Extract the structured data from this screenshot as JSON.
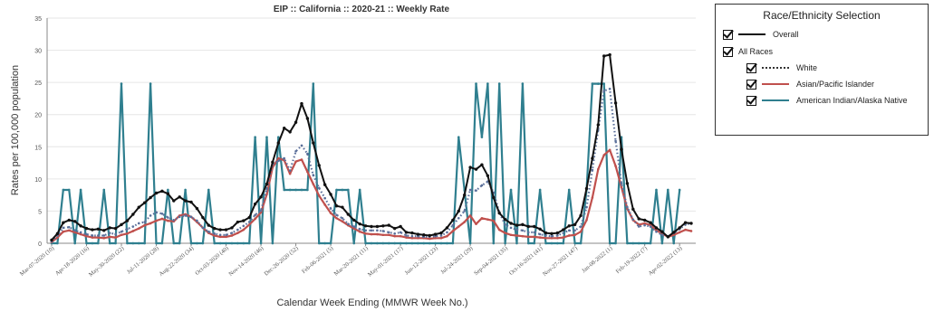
{
  "chart_data": {
    "type": "line",
    "title": "EIP :: California :: 2020-21 :: Weekly Rate",
    "xlabel": "Calendar Week Ending (MMWR Week No.)",
    "ylabel": "Rates per 100,000 population",
    "ylim": [
      0,
      35
    ],
    "yticks": [
      0,
      5,
      10,
      15,
      20,
      25,
      30,
      35
    ],
    "xticklabels": [
      "Mar-07-2020 (10)",
      "Apr-18-2020 (16)",
      "May-30-2020 (22)",
      "Jul-11-2020 (28)",
      "Aug-22-2020 (34)",
      "Oct-03-2020 (40)",
      "Nov-14-2020 (46)",
      "Dec-26-2020 (52)",
      "Feb-06-2021 (5)",
      "Mar-20-2021 (11)",
      "May-01-2021 (17)",
      "Jun-12-2021 (23)",
      "Jul-24-2021 (29)",
      "Sep-04-2021 (35)",
      "Oct-16-2021 (41)",
      "Nov-27-2021 (47)",
      "Jan-08-2022 (1)",
      "Feb-19-2022 (7)",
      "Apr-02-2022 (13)"
    ],
    "grid": true,
    "legend": {
      "title": "Race/Ethnicity Selection",
      "position": "right",
      "entries": [
        "Overall",
        "All Races",
        "White",
        "Asian/Pacific Islander",
        "American Indian/Alaska Native"
      ]
    },
    "series": [
      {
        "name": "Overall",
        "color": "#111111",
        "style": "solid",
        "values": [
          0.5,
          1.5,
          3.2,
          3.6,
          3.4,
          2.7,
          2.3,
          2.1,
          2.2,
          2.0,
          2.4,
          2.3,
          2.9,
          3.5,
          4.5,
          5.6,
          6.3,
          7.1,
          7.8,
          8.1,
          7.7,
          6.6,
          7.2,
          6.6,
          6.4,
          5.4,
          4.0,
          2.8,
          2.3,
          2.1,
          2.1,
          2.4,
          3.3,
          3.5,
          4.0,
          6.1,
          7.2,
          9.2,
          12.6,
          15.6,
          17.9,
          17.3,
          18.8,
          21.7,
          19.4,
          15.6,
          12.1,
          9.1,
          7.6,
          5.8,
          5.6,
          4.5,
          3.6,
          3.0,
          2.7,
          2.6,
          2.6,
          2.7,
          2.8,
          2.3,
          2.6,
          1.7,
          1.6,
          1.4,
          1.3,
          1.2,
          1.4,
          1.6,
          2.4,
          3.6,
          5.0,
          7.5,
          11.8,
          11.5,
          12.2,
          10.5,
          7.1,
          4.7,
          3.7,
          3.1,
          2.8,
          2.9,
          2.6,
          2.6,
          2.2,
          1.6,
          1.5,
          1.6,
          2.1,
          2.7,
          2.9,
          4.3,
          8.5,
          13.2,
          18.4,
          29.1,
          29.3,
          21.8,
          14.6,
          9.3,
          5.3,
          3.8,
          3.6,
          3.2,
          2.4,
          1.8,
          1.0,
          1.7,
          2.4,
          3.2,
          3.1
        ]
      },
      {
        "name": "White",
        "color": "#5a6f9a",
        "style": "dotted",
        "values": [
          0.3,
          1.2,
          2.4,
          2.5,
          2.0,
          1.7,
          1.4,
          1.2,
          1.2,
          1.2,
          1.6,
          1.4,
          1.8,
          2.2,
          2.6,
          3.1,
          3.3,
          4.3,
          4.8,
          4.6,
          4.0,
          3.6,
          4.1,
          4.3,
          4.1,
          3.5,
          2.4,
          1.8,
          1.5,
          1.3,
          1.3,
          1.6,
          2.1,
          2.7,
          3.3,
          4.4,
          5.1,
          8.4,
          12.3,
          12.8,
          13.2,
          11.3,
          14.3,
          15.2,
          13.9,
          10.6,
          8.6,
          7.0,
          5.4,
          4.4,
          3.9,
          3.0,
          2.6,
          2.2,
          2.0,
          2.0,
          2.0,
          1.9,
          1.7,
          1.5,
          1.7,
          1.2,
          1.1,
          1.1,
          1.0,
          1.0,
          1.1,
          1.2,
          1.7,
          2.8,
          3.9,
          5.0,
          8.3,
          8.2,
          9.0,
          9.6,
          7.9,
          4.8,
          2.9,
          2.4,
          2.1,
          2.0,
          1.7,
          1.7,
          1.4,
          1.2,
          1.1,
          1.2,
          1.6,
          2.0,
          2.0,
          2.6,
          5.6,
          11.4,
          17.6,
          23.7,
          24.0,
          15.9,
          9.3,
          5.6,
          3.7,
          2.6,
          2.8,
          2.6,
          1.8,
          1.3,
          1.1,
          1.6,
          2.2,
          2.9,
          3.1
        ]
      },
      {
        "name": "Asian/Pacific Islander",
        "color": "#c0504d",
        "style": "solid",
        "values": [
          0.2,
          0.9,
          1.8,
          2.0,
          1.7,
          1.4,
          1.1,
          0.9,
          0.9,
          0.8,
          1.0,
          0.9,
          1.3,
          1.5,
          1.9,
          2.3,
          2.8,
          3.1,
          3.5,
          3.8,
          3.5,
          3.4,
          4.3,
          4.5,
          4.1,
          3.3,
          2.4,
          1.6,
          1.2,
          1.0,
          1.0,
          1.2,
          1.6,
          2.1,
          2.9,
          3.8,
          4.8,
          7.6,
          11.8,
          13.2,
          12.9,
          10.8,
          12.7,
          13.0,
          11.1,
          9.2,
          7.4,
          6.0,
          4.7,
          3.9,
          3.4,
          2.8,
          2.3,
          1.8,
          1.5,
          1.4,
          1.4,
          1.3,
          1.3,
          1.1,
          1.1,
          0.9,
          0.8,
          0.8,
          0.8,
          0.7,
          0.8,
          0.8,
          1.1,
          1.9,
          2.6,
          3.3,
          4.3,
          3.0,
          3.9,
          3.7,
          3.5,
          2.1,
          1.6,
          1.3,
          1.2,
          1.1,
          1.0,
          1.0,
          0.9,
          0.8,
          0.8,
          0.8,
          0.9,
          1.2,
          1.3,
          1.8,
          3.6,
          7.1,
          11.5,
          13.7,
          14.5,
          12.0,
          8.7,
          5.4,
          3.6,
          2.9,
          3.1,
          2.8,
          2.0,
          1.5,
          1.0,
          1.3,
          1.7,
          2.1,
          1.9
        ]
      },
      {
        "name": "American Indian/Alaska Native",
        "color": "#2f7f8f",
        "style": "solid",
        "values": [
          0,
          0,
          8.3,
          8.3,
          0,
          8.3,
          0,
          0,
          0,
          8.3,
          0,
          0,
          24.8,
          0,
          0,
          0,
          0,
          24.8,
          0,
          0,
          8.3,
          0,
          0,
          8.3,
          0,
          0,
          0,
          8.3,
          0,
          0,
          0,
          0,
          0,
          0,
          0,
          16.5,
          0,
          16.5,
          0,
          16.5,
          8.3,
          8.3,
          8.3,
          8.3,
          8.3,
          24.8,
          0,
          0,
          0,
          8.3,
          8.3,
          8.3,
          0,
          8.3,
          0,
          0,
          0,
          0,
          0,
          0,
          0,
          0,
          0,
          0,
          0,
          0,
          0,
          0,
          0,
          0,
          16.5,
          8.3,
          0,
          24.8,
          16.5,
          24.8,
          0,
          24.8,
          0,
          8.3,
          0,
          24.8,
          0,
          0,
          8.3,
          0,
          0,
          0,
          0,
          8.3,
          0,
          0,
          8.3,
          24.8,
          24.8,
          24.8,
          0,
          0,
          16.5,
          0,
          0,
          0,
          0,
          0,
          8.3,
          0,
          8.3,
          0,
          8.3
        ]
      }
    ]
  }
}
